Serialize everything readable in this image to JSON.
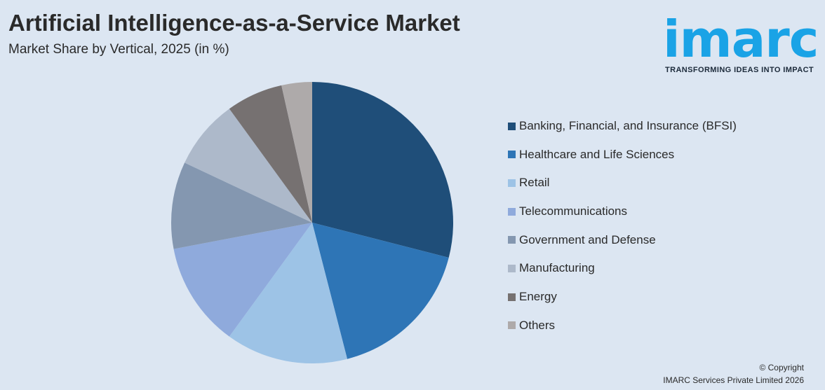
{
  "header": {
    "title": "Artificial Intelligence-as-a-Service Market",
    "subtitle": "Market Share by Vertical, 2025 (in %)"
  },
  "logo": {
    "word": "imarc",
    "tagline": "TRANSFORMING IDEAS INTO IMPACT",
    "color": "#1aa3e6"
  },
  "chart_data": {
    "type": "pie",
    "title": "Artificial Intelligence-as-a-Service Market",
    "subtitle": "Market Share by Vertical, 2025 (in %)",
    "legend_position": "right",
    "slices": [
      {
        "label": "Banking, Financial, and Insurance (BFSI)",
        "value": 29.0,
        "color": "#1f4e79"
      },
      {
        "label": "Healthcare and Life Sciences",
        "value": 17.0,
        "color": "#2e75b6"
      },
      {
        "label": "Retail",
        "value": 14.0,
        "color": "#9dc3e6"
      },
      {
        "label": "Telecommunications",
        "value": 12.0,
        "color": "#8faadc"
      },
      {
        "label": "Government and Defense",
        "value": 10.0,
        "color": "#8497b0"
      },
      {
        "label": "Manufacturing",
        "value": 8.0,
        "color": "#adb9ca"
      },
      {
        "label": "Energy",
        "value": 6.5,
        "color": "#767171"
      },
      {
        "label": "Others",
        "value": 3.5,
        "color": "#aeaaaa"
      }
    ]
  },
  "footer": {
    "copyright_line1": "© Copyright",
    "copyright_line2": "IMARC Services Private Limited 2026"
  }
}
